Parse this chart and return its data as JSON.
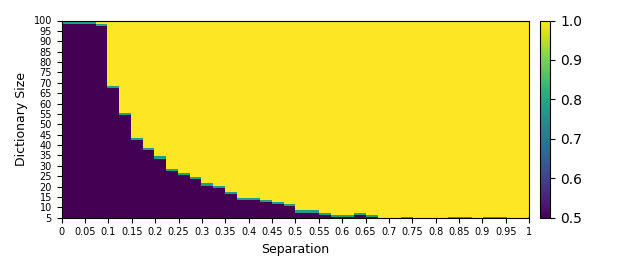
{
  "title": "",
  "xlabel": "Separation",
  "ylabel": "Dictionary Size",
  "cmap": "viridis",
  "vmin": 0.5,
  "vmax": 1.0,
  "x_min": 0.0,
  "x_max": 1.0,
  "y_min": 5,
  "y_max": 100,
  "xticks": [
    0.0,
    0.05,
    0.1,
    0.15,
    0.2,
    0.25,
    0.3,
    0.35,
    0.4,
    0.45,
    0.5,
    0.55,
    0.6,
    0.65,
    0.7,
    0.75,
    0.8,
    0.85,
    0.9,
    0.95,
    1.0
  ],
  "yticks": [
    5,
    10,
    15,
    20,
    25,
    30,
    35,
    40,
    45,
    50,
    55,
    60,
    65,
    70,
    75,
    80,
    85,
    90,
    95,
    100
  ],
  "colorbar_ticks": [
    0.5,
    0.6,
    0.7,
    0.8,
    0.9,
    1.0
  ],
  "colorbar_ticklabels": [
    "0.5",
    "0.6",
    "0.7",
    "0.8",
    "0.9",
    "1.0"
  ],
  "figsize": [
    6.4,
    2.71
  ],
  "dpi": 100,
  "boundary_points": [
    [
      0.0,
      999
    ],
    [
      0.05,
      999
    ],
    [
      0.075,
      100
    ],
    [
      0.1,
      68
    ],
    [
      0.125,
      57
    ],
    [
      0.15,
      45
    ],
    [
      0.175,
      40
    ],
    [
      0.2,
      35
    ],
    [
      0.225,
      30
    ],
    [
      0.25,
      27
    ],
    [
      0.275,
      24
    ],
    [
      0.3,
      22
    ],
    [
      0.325,
      20
    ],
    [
      0.35,
      18
    ],
    [
      0.375,
      16
    ],
    [
      0.4,
      14
    ],
    [
      0.425,
      13
    ],
    [
      0.45,
      12
    ],
    [
      0.475,
      11
    ],
    [
      0.5,
      10
    ],
    [
      0.525,
      9
    ],
    [
      0.55,
      9
    ],
    [
      0.575,
      8
    ],
    [
      0.6,
      8
    ],
    [
      0.625,
      7
    ],
    [
      0.65,
      6
    ],
    [
      0.675,
      6
    ],
    [
      0.7,
      5
    ],
    [
      1.0,
      5
    ]
  ]
}
